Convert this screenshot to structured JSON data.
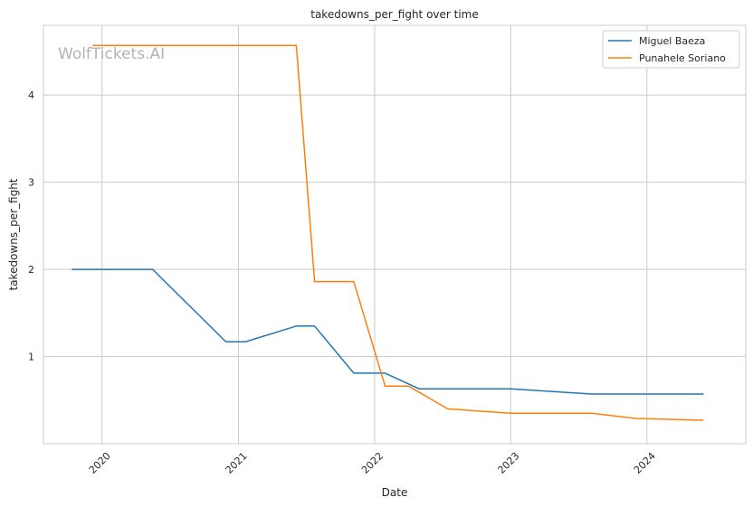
{
  "chart_data": {
    "type": "line",
    "title": "takedowns_per_fight over time",
    "xlabel": "Date",
    "ylabel": "takedowns_per_fight",
    "x_ticks": [
      "2020",
      "2021",
      "2022",
      "2023",
      "2024"
    ],
    "y_ticks": [
      1,
      2,
      3,
      4
    ],
    "xlim": [
      "2019-07-28",
      "2024-09-22"
    ],
    "ylim": [
      0.0,
      4.8
    ],
    "grid": true,
    "legend_position": "top-right",
    "watermark": "WolfTickets.AI",
    "series": [
      {
        "name": "Miguel Baeza",
        "color": "#1f77b4",
        "points": [
          [
            "2019-10-12",
            2.0
          ],
          [
            "2020-05-16",
            2.0
          ],
          [
            "2020-11-28",
            1.17
          ],
          [
            "2021-01-20",
            1.17
          ],
          [
            "2021-06-05",
            1.35
          ],
          [
            "2021-07-24",
            1.35
          ],
          [
            "2021-11-06",
            0.81
          ],
          [
            "2022-01-29",
            0.81
          ],
          [
            "2022-04-30",
            0.63
          ],
          [
            "2023-01-01",
            0.63
          ],
          [
            "2023-08-05",
            0.57
          ],
          [
            "2024-06-01",
            0.57
          ]
        ]
      },
      {
        "name": "Punahele Soriano",
        "color": "#ff7f0e",
        "points": [
          [
            "2019-12-07",
            4.57
          ],
          [
            "2021-06-05",
            4.57
          ],
          [
            "2021-07-24",
            1.86
          ],
          [
            "2021-11-06",
            1.86
          ],
          [
            "2022-01-29",
            0.66
          ],
          [
            "2022-04-02",
            0.66
          ],
          [
            "2022-07-16",
            0.4
          ],
          [
            "2023-01-01",
            0.35
          ],
          [
            "2023-08-05",
            0.35
          ],
          [
            "2023-12-02",
            0.29
          ],
          [
            "2024-06-01",
            0.27
          ]
        ]
      }
    ]
  }
}
